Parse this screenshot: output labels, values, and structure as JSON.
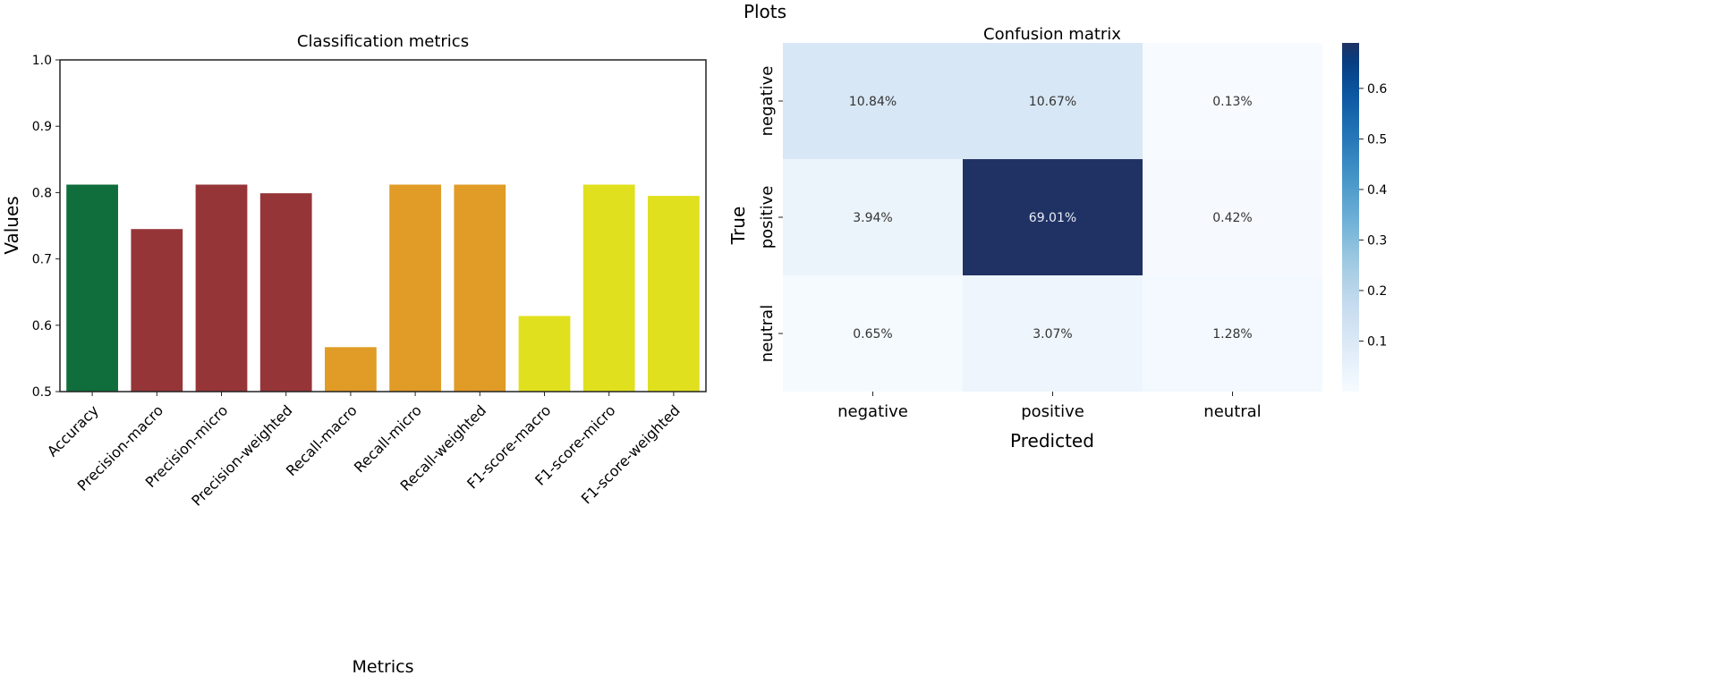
{
  "suptitle": "Plots",
  "chart_data": [
    {
      "type": "bar",
      "title": "Classification metrics",
      "xlabel": "Metrics",
      "ylabel": "Values",
      "ylim": [
        0.5,
        1.0
      ],
      "yticks": [
        "0.5",
        "0.6",
        "0.7",
        "0.8",
        "0.9",
        "1.0"
      ],
      "grid": false,
      "categories": [
        "Accuracy",
        "Precision-macro",
        "Precision-micro",
        "Precision-weighted",
        "Recall-macro",
        "Recall-micro",
        "Recall-weighted",
        "F1-score-macro",
        "F1-score-micro",
        "F1-score-weighted"
      ],
      "values": [
        0.812,
        0.745,
        0.812,
        0.799,
        0.567,
        0.812,
        0.812,
        0.614,
        0.812,
        0.795
      ],
      "colors": [
        "#0f6e3b",
        "#963538",
        "#963538",
        "#963538",
        "#e09c26",
        "#e09c26",
        "#e09c26",
        "#e0e01e",
        "#e0e01e",
        "#e0e01e"
      ]
    },
    {
      "type": "heatmap",
      "title": "Confusion matrix",
      "xlabel": "Predicted",
      "ylabel": "True",
      "x_categories": [
        "negative",
        "positive",
        "neutral"
      ],
      "y_categories": [
        "negative",
        "positive",
        "neutral"
      ],
      "values": [
        [
          0.1084,
          0.1067,
          0.0013
        ],
        [
          0.0394,
          0.6901,
          0.0042
        ],
        [
          0.0065,
          0.0307,
          0.0128
        ]
      ],
      "annotations": [
        [
          "10.84%",
          "10.67%",
          "0.13%"
        ],
        [
          "3.94%",
          "69.01%",
          "0.42%"
        ],
        [
          "0.65%",
          "3.07%",
          "1.28%"
        ]
      ],
      "colormap": "Blues",
      "colorbar_range": [
        0.0,
        0.69
      ],
      "colorbar_ticks": [
        "0.1",
        "0.2",
        "0.3",
        "0.4",
        "0.5",
        "0.6"
      ]
    }
  ]
}
